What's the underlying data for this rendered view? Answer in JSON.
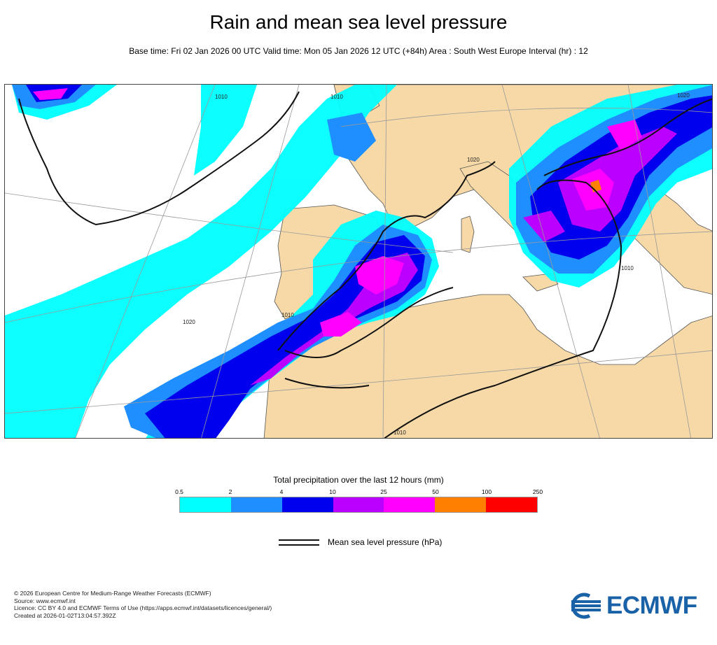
{
  "title": "Rain and mean sea level pressure",
  "subtitle": "Base time: Fri 02 Jan 2026 00 UTC Valid time: Mon 05 Jan 2026 12 UTC (+84h) Area : South West Europe Interval (hr) : 12",
  "map": {
    "isobar_labels": [
      "1010",
      "1010",
      "1010",
      "1020",
      "1020",
      "1020",
      "1010",
      "1010"
    ],
    "contour_color": "#111111",
    "land_color": "#f7d9a8",
    "sea_color": "#ffffff"
  },
  "legend": {
    "title": "Total precipitation over the last 12 hours (mm)",
    "ticks": [
      "0.5",
      "2",
      "4",
      "10",
      "25",
      "50",
      "100",
      "250"
    ],
    "colors": [
      "#00ffff",
      "#1f8fff",
      "#0000ee",
      "#bb00ff",
      "#ff00ff",
      "#ff8000",
      "#ff0000"
    ],
    "msl_label": "Mean sea level pressure (hPa)"
  },
  "footer": {
    "line1": "© 2026 European Centre for Medium-Range Weather Forecasts (ECMWF)",
    "line2": "Source: www.ecmwf.int",
    "line3": "Licence: CC BY 4.0 and ECMWF Terms of Use (https://apps.ecmwf.int/datasets/licences/general/)",
    "line4": "Created at 2026-01-02T13:04:57.392Z"
  },
  "logo": {
    "text": "ECMWF",
    "color": "#1a62a8"
  }
}
